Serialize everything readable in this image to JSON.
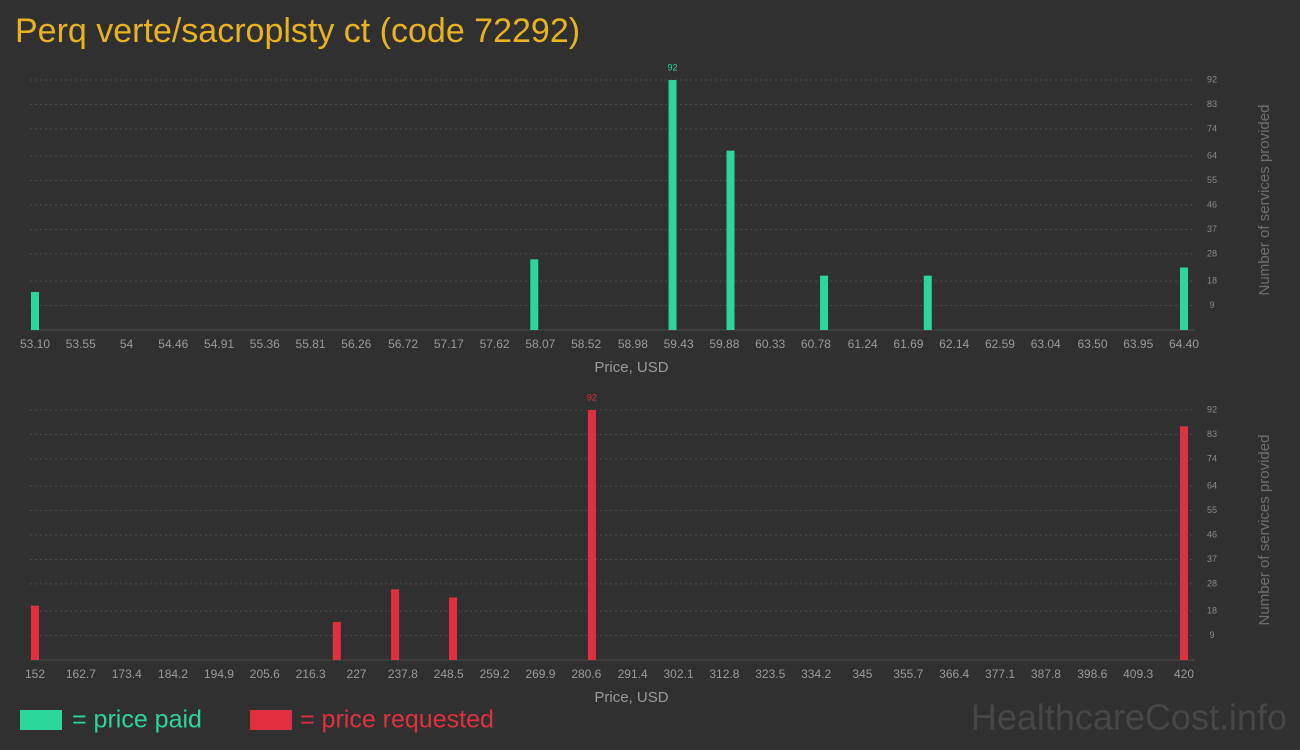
{
  "title": "Perq verte/sacroplsty ct (code 72292)",
  "watermark": "HealthcareCost.info",
  "chart_data": [
    {
      "type": "bar",
      "x": [
        53.1,
        58.01,
        59.37,
        59.94,
        60.86,
        61.88,
        64.4
      ],
      "series": [
        {
          "name": "= price paid",
          "color": "#2ad69a",
          "values": [
            14,
            26,
            92,
            66,
            20,
            20,
            23
          ]
        }
      ],
      "xlim": [
        53.1,
        64.4
      ],
      "xticks": [
        {
          "value": 53.1,
          "label": "53.10"
        },
        53.55,
        54,
        54.46,
        54.91,
        55.36,
        55.81,
        56.26,
        56.72,
        57.17,
        57.62,
        58.07,
        58.52,
        58.98,
        59.43,
        59.88,
        60.33,
        60.78,
        61.24,
        61.69,
        62.14,
        62.59,
        63.04,
        {
          "value": 63.5,
          "label": "63.50"
        },
        63.95,
        {
          "value": 64.4,
          "label": "64.40"
        }
      ],
      "ylim": [
        0,
        92
      ],
      "yticks": [
        9,
        18,
        28,
        37,
        46,
        55,
        64,
        74,
        83,
        92
      ],
      "x_label": "Price, USD",
      "y_label": "Number of services provided",
      "grid": true,
      "data_labels": "max"
    },
    {
      "type": "bar",
      "x": [
        152,
        222.4,
        236,
        249.5,
        281.9,
        420
      ],
      "series": [
        {
          "name": "= price requested",
          "color": "#e0303f",
          "values": [
            20,
            14,
            26,
            23,
            92,
            86
          ]
        }
      ],
      "xlim": [
        152,
        420
      ],
      "xticks": [
        152,
        162.7,
        173.4,
        184.2,
        194.9,
        205.6,
        216.3,
        227,
        237.8,
        248.5,
        259.2,
        269.9,
        280.6,
        291.4,
        302.1,
        312.8,
        323.5,
        334.2,
        345,
        355.7,
        366.4,
        377.1,
        387.8,
        398.6,
        409.3,
        420
      ],
      "ylim": [
        0,
        92
      ],
      "yticks": [
        9,
        18,
        28,
        37,
        46,
        55,
        64,
        74,
        83,
        92
      ],
      "x_label": "Price, USD",
      "y_label": "Number of services provided",
      "grid": true,
      "data_labels": "max"
    }
  ]
}
